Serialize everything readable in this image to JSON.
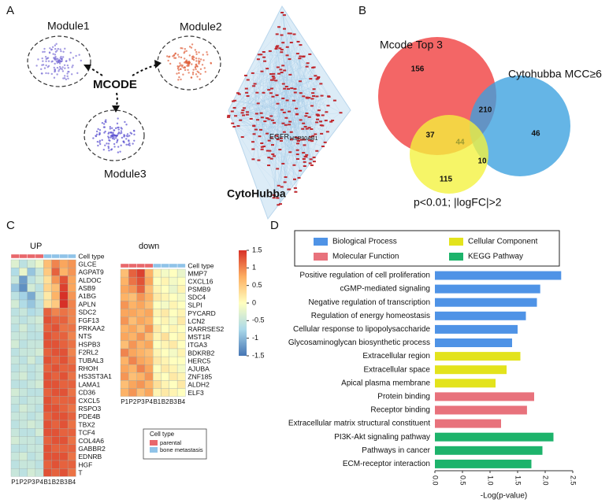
{
  "panel_labels": [
    "A",
    "B",
    "C",
    "D"
  ],
  "network": {
    "modules": [
      "Module1",
      "Module2",
      "Module3"
    ],
    "method": "MCODE",
    "hub": "CytoHubba",
    "genes": [
      "EGFR",
      "HSP90AB1"
    ]
  },
  "chart_data": [
    {
      "type": "venn",
      "sets": [
        {
          "name": "Mcode Top 3",
          "color": "#ef3b3b"
        },
        {
          "name": "Cytohubba MCC≥6",
          "color": "#3aa0df"
        },
        {
          "name": "p<0.01;  |logFC|>2",
          "color": "#f4f23c"
        }
      ],
      "values": [
        156,
        210,
        46,
        37,
        44,
        10,
        115
      ]
    },
    {
      "type": "heatmap",
      "title": "UP",
      "annotation_label": "Cell type",
      "columns": [
        "P1",
        "P2",
        "P3",
        "P4",
        "B1",
        "B2",
        "B3",
        "B4"
      ],
      "column_types": [
        "parental",
        "parental",
        "parental",
        "parental",
        "bone metastasis",
        "bone metastasis",
        "bone metastasis",
        "bone metastasis"
      ],
      "rows": [
        "GLCE",
        "AGPAT9",
        "ALDOC",
        "ASB9",
        "A1BG",
        "APLN",
        "SDC2",
        "FGF13",
        "PRKAA2",
        "NTS",
        "HSPB3",
        "F2RL2",
        "TUBAL3",
        "RHOH",
        "HS3ST3A1",
        "LAMA1",
        "CD36",
        "CXCL5",
        "RSPO3",
        "PDE4B",
        "TBX2",
        "TCF4",
        "COL4A6",
        "GABBR2",
        "EDNRB",
        "HGF",
        "T"
      ],
      "values": [
        [
          -0.3,
          -0.6,
          -0.4,
          -0.2,
          0.6,
          1.0,
          0.8,
          0.9
        ],
        [
          -0.7,
          -0.2,
          -0.9,
          -0.5,
          0.5,
          1.2,
          0.7,
          0.9
        ],
        [
          -0.5,
          -1.2,
          -0.6,
          -0.4,
          0.3,
          0.9,
          1.3,
          0.8
        ],
        [
          -0.9,
          -1.3,
          -0.4,
          -0.6,
          0.4,
          0.6,
          1.4,
          0.8
        ],
        [
          -0.6,
          -0.8,
          -1.1,
          -0.5,
          0.2,
          0.7,
          1.5,
          0.9
        ],
        [
          -0.4,
          -0.7,
          -0.9,
          -0.6,
          0.3,
          0.5,
          1.5,
          1.0
        ],
        [
          -0.6,
          -0.5,
          -0.7,
          -0.6,
          1.2,
          1.0,
          1.1,
          1.0
        ],
        [
          -0.5,
          -0.6,
          -0.5,
          -0.4,
          1.3,
          1.2,
          1.2,
          1.0
        ],
        [
          -0.6,
          -0.4,
          -0.6,
          -0.5,
          1.2,
          1.3,
          1.1,
          1.1
        ],
        [
          -0.5,
          -0.5,
          -0.6,
          -0.6,
          1.3,
          1.2,
          1.2,
          1.0
        ],
        [
          -0.4,
          -0.6,
          -0.5,
          -0.5,
          1.3,
          1.3,
          1.2,
          1.1
        ],
        [
          -0.6,
          -0.5,
          -0.5,
          -0.4,
          1.2,
          1.3,
          1.3,
          1.0
        ],
        [
          -0.5,
          -0.6,
          -0.4,
          -0.6,
          1.3,
          1.2,
          1.3,
          1.1
        ],
        [
          -0.6,
          -0.5,
          -0.6,
          -0.5,
          1.2,
          1.3,
          1.2,
          1.2
        ],
        [
          -0.5,
          -0.4,
          -0.6,
          -0.5,
          1.3,
          1.2,
          1.3,
          1.1
        ],
        [
          -0.6,
          -0.6,
          -0.5,
          -0.4,
          1.3,
          1.3,
          1.2,
          1.2
        ],
        [
          -0.4,
          -0.5,
          -0.6,
          -0.6,
          1.2,
          1.3,
          1.3,
          1.1
        ],
        [
          -0.5,
          -0.6,
          -0.5,
          -0.5,
          1.3,
          1.2,
          1.2,
          1.2
        ],
        [
          -0.6,
          -0.4,
          -0.5,
          -0.6,
          1.3,
          1.3,
          1.2,
          1.1
        ],
        [
          -0.5,
          -0.5,
          -0.6,
          -0.5,
          1.2,
          1.3,
          1.3,
          1.2
        ],
        [
          -0.6,
          -0.5,
          -0.4,
          -0.5,
          1.3,
          1.2,
          1.3,
          1.1
        ],
        [
          -0.5,
          -0.6,
          -0.6,
          -0.4,
          1.3,
          1.3,
          1.2,
          1.2
        ],
        [
          -0.4,
          -0.5,
          -0.5,
          -0.6,
          1.2,
          1.3,
          1.3,
          1.1
        ],
        [
          -0.6,
          -0.6,
          -0.5,
          -0.5,
          1.3,
          1.2,
          1.2,
          1.2
        ],
        [
          -0.5,
          -0.4,
          -0.6,
          -0.5,
          1.3,
          1.3,
          1.3,
          1.1
        ],
        [
          -0.6,
          -0.5,
          -0.5,
          -0.6,
          1.2,
          1.3,
          1.2,
          1.2
        ],
        [
          -0.5,
          -0.6,
          -0.4,
          -0.5,
          1.3,
          1.2,
          1.3,
          1.1
        ]
      ],
      "legend": {
        "title": "Cell type",
        "items": [
          {
            "name": "parental",
            "color": "#e8676b"
          },
          {
            "name": "bone metastasis",
            "color": "#8fc3e8"
          }
        ]
      }
    },
    {
      "type": "heatmap",
      "title": "down",
      "annotation_label": "Cell type",
      "columns": [
        "P1",
        "P2",
        "P3",
        "P4",
        "B1",
        "B2",
        "B3",
        "B4"
      ],
      "column_types": [
        "parental",
        "parental",
        "parental",
        "parental",
        "bone metastasis",
        "bone metastasis",
        "bone metastasis",
        "bone metastasis"
      ],
      "rows": [
        "MMP7",
        "CXCL16",
        "PSMB9",
        "SDC4",
        "SLPI",
        "PYCARD",
        "LCN2",
        "RARRSES2",
        "MST1R",
        "ITGA3",
        "BDKRB2",
        "HERC5",
        "AJUBA",
        "ZNF185",
        "ALDH2",
        "ELF3"
      ],
      "values": [
        [
          0.6,
          1.2,
          1.4,
          0.7,
          0.1,
          -0.1,
          0.0,
          -0.2
        ],
        [
          0.7,
          1.1,
          1.3,
          0.8,
          0.0,
          0.1,
          -0.1,
          0.0
        ],
        [
          0.8,
          0.9,
          1.2,
          0.6,
          0.1,
          0.0,
          -0.2,
          0.1
        ],
        [
          0.7,
          0.6,
          0.9,
          0.7,
          0.2,
          0.1,
          0.0,
          -0.1
        ],
        [
          0.9,
          0.7,
          0.8,
          0.6,
          0.0,
          -0.1,
          0.1,
          0.0
        ],
        [
          0.8,
          0.8,
          0.7,
          0.8,
          0.1,
          0.2,
          0.0,
          0.1
        ],
        [
          0.9,
          0.6,
          0.8,
          0.7,
          0.0,
          0.1,
          -0.1,
          0.2
        ],
        [
          0.7,
          0.8,
          0.6,
          0.9,
          0.2,
          0.0,
          0.1,
          0.0
        ],
        [
          0.8,
          0.7,
          0.9,
          0.6,
          0.1,
          0.3,
          0.0,
          0.1
        ],
        [
          0.6,
          0.9,
          0.7,
          0.8,
          0.0,
          0.1,
          0.2,
          0.0
        ],
        [
          1.0,
          0.8,
          0.7,
          0.6,
          0.1,
          0.0,
          -0.1,
          0.1
        ],
        [
          0.7,
          1.0,
          0.8,
          0.7,
          0.2,
          0.1,
          0.0,
          0.0
        ],
        [
          0.8,
          0.7,
          1.0,
          0.8,
          0.0,
          0.2,
          0.1,
          -0.1
        ],
        [
          0.9,
          0.6,
          0.7,
          0.9,
          0.1,
          0.0,
          0.2,
          0.1
        ],
        [
          0.6,
          0.8,
          0.9,
          0.7,
          0.3,
          0.1,
          0.0,
          0.2
        ],
        [
          0.7,
          0.9,
          0.6,
          0.8,
          0.1,
          0.2,
          0.1,
          0.0
        ]
      ],
      "colorbar": {
        "range": [
          -1.5,
          1.5
        ],
        "ticks": [
          1.5,
          1,
          0.5,
          0,
          -0.5,
          -1,
          -1.5
        ],
        "colors": [
          "#4575b4",
          "#abd9e9",
          "#ffffbf",
          "#fdae61",
          "#d73027"
        ]
      }
    },
    {
      "type": "barh",
      "categories": [
        "Positive regulation of cell  proliferation",
        "cGMP-mediated signaling",
        "Negative regulation  of  transcription",
        "Regulation of energy homeostasis",
        "Cellular response to lipopolysaccharide",
        "Glycosaminoglycan biosynthetic  process",
        "Extracellular region",
        "Extracellular space",
        "Apical plasma membrane",
        "Protein binding",
        "Receptor binding",
        "Extracellular matrix structural constituent",
        "PI3K-Akt signaling pathway",
        "Pathways in cancer",
        "ECM-receptor interaction"
      ],
      "series": [
        {
          "name": "Biological Process",
          "color": "#4f93e6",
          "values": [
            2.29,
            1.91,
            1.85,
            1.65,
            1.5,
            1.4,
            null,
            null,
            null,
            null,
            null,
            null,
            null,
            null,
            null
          ]
        },
        {
          "name": "Cellular Component",
          "color": "#e3e31c",
          "values": [
            null,
            null,
            null,
            null,
            null,
            null,
            1.55,
            1.3,
            1.1,
            null,
            null,
            null,
            null,
            null,
            null
          ]
        },
        {
          "name": "Molecular Function",
          "color": "#e8727c",
          "values": [
            null,
            null,
            null,
            null,
            null,
            null,
            null,
            null,
            null,
            1.8,
            1.67,
            1.2,
            null,
            null,
            null
          ]
        },
        {
          "name": "KEGG Pathway",
          "color": "#1db36b",
          "values": [
            null,
            null,
            null,
            null,
            null,
            null,
            null,
            null,
            null,
            null,
            null,
            null,
            2.15,
            1.95,
            1.75
          ]
        }
      ],
      "xlim": [
        0,
        2.5
      ],
      "xticks": [
        {
          "value": 0,
          "label": "0.0"
        },
        0.5,
        {
          "value": 1,
          "label": "1.0"
        },
        1.5,
        {
          "value": 2,
          "label": "2.0"
        },
        2.5
      ],
      "xlabel": "-Log(p-value)"
    }
  ]
}
